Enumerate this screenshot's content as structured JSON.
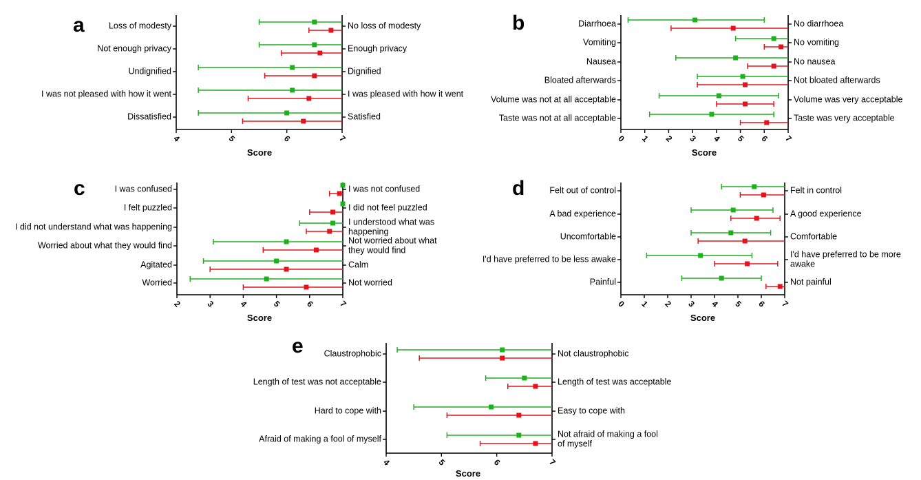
{
  "colors": {
    "green": "#1DB11D",
    "red": "#E5141C"
  },
  "chart_data": [
    {
      "type": "scatter",
      "panel": "a",
      "xlabel": "Score",
      "xlim": [
        4,
        7
      ],
      "ticks": [
        4,
        5,
        6,
        7
      ],
      "rows": [
        {
          "left": "Loss of modesty",
          "right": [
            "No loss of modesty"
          ],
          "green": {
            "mean": 6.5,
            "lo": 5.5,
            "hi": 7
          },
          "red": {
            "mean": 6.8,
            "lo": 6.4,
            "hi": 7
          }
        },
        {
          "left": "Not enough privacy",
          "right": [
            "Enough privacy"
          ],
          "green": {
            "mean": 6.5,
            "lo": 5.5,
            "hi": 7
          },
          "red": {
            "mean": 6.6,
            "lo": 5.9,
            "hi": 7
          }
        },
        {
          "left": "Undignified",
          "right": [
            "Dignified"
          ],
          "green": {
            "mean": 6.1,
            "lo": 4.4,
            "hi": 7
          },
          "red": {
            "mean": 6.5,
            "lo": 5.6,
            "hi": 7
          }
        },
        {
          "left": "I was not pleased with how it went",
          "right": [
            "I was pleased with how it went"
          ],
          "green": {
            "mean": 6.1,
            "lo": 4.4,
            "hi": 7
          },
          "red": {
            "mean": 6.4,
            "lo": 5.3,
            "hi": 7
          }
        },
        {
          "left": "Dissatisfied",
          "right": [
            "Satisfied"
          ],
          "green": {
            "mean": 6.0,
            "lo": 4.4,
            "hi": 7
          },
          "red": {
            "mean": 6.3,
            "lo": 5.2,
            "hi": 7
          }
        }
      ]
    },
    {
      "type": "scatter",
      "panel": "b",
      "xlabel": "Score",
      "xlim": [
        0,
        7
      ],
      "ticks": [
        0,
        1,
        2,
        3,
        4,
        5,
        6,
        7
      ],
      "rows": [
        {
          "left": "Diarrhoea",
          "right": [
            "No diarrhoea"
          ],
          "green": {
            "mean": 3.1,
            "lo": 0.3,
            "hi": 6.0
          },
          "red": {
            "mean": 4.7,
            "lo": 2.1,
            "hi": 7
          }
        },
        {
          "left": "Vomiting",
          "right": [
            "No vomiting"
          ],
          "green": {
            "mean": 6.4,
            "lo": 4.8,
            "hi": 7
          },
          "red": {
            "mean": 6.7,
            "lo": 6.0,
            "hi": 7
          }
        },
        {
          "left": "Nausea",
          "right": [
            "No nausea"
          ],
          "green": {
            "mean": 4.8,
            "lo": 2.3,
            "hi": 7
          },
          "red": {
            "mean": 6.4,
            "lo": 5.3,
            "hi": 7
          }
        },
        {
          "left": "Bloated afterwards",
          "right": [
            "Not bloated afterwards"
          ],
          "green": {
            "mean": 5.1,
            "lo": 3.2,
            "hi": 7
          },
          "red": {
            "mean": 5.2,
            "lo": 3.2,
            "hi": 7
          }
        },
        {
          "left": "Volume was not at all acceptable",
          "right": [
            "Volume was very acceptable"
          ],
          "green": {
            "mean": 4.1,
            "lo": 1.6,
            "hi": 6.6
          },
          "red": {
            "mean": 5.2,
            "lo": 4.0,
            "hi": 6.4
          }
        },
        {
          "left": "Taste was not at all acceptable",
          "right": [
            "Taste was very acceptable"
          ],
          "green": {
            "mean": 3.8,
            "lo": 1.2,
            "hi": 6.4
          },
          "red": {
            "mean": 6.1,
            "lo": 5.0,
            "hi": 7
          }
        }
      ]
    },
    {
      "type": "scatter",
      "panel": "c",
      "xlabel": "Score",
      "xlim": [
        2,
        7
      ],
      "ticks": [
        2,
        3,
        4,
        5,
        6,
        7
      ],
      "rows": [
        {
          "left": "I was confused",
          "right": [
            "I was not confused"
          ],
          "green": {
            "mean": 7.0,
            "lo": 7.0,
            "hi": 7.0
          },
          "red": {
            "mean": 6.9,
            "lo": 6.6,
            "hi": 7
          }
        },
        {
          "left": "I felt puzzled",
          "right": [
            "I did not feel puzzled"
          ],
          "green": {
            "mean": 7.0,
            "lo": 7.0,
            "hi": 7.0
          },
          "red": {
            "mean": 6.7,
            "lo": 6.0,
            "hi": 7
          }
        },
        {
          "left": "I did not understand what was happening",
          "right": [
            "I understood what was",
            "happening"
          ],
          "green": {
            "mean": 6.7,
            "lo": 5.7,
            "hi": 7
          },
          "red": {
            "mean": 6.6,
            "lo": 5.9,
            "hi": 7
          }
        },
        {
          "left": "Worried about what they would find",
          "right": [
            "Not worried about what",
            "they would find"
          ],
          "green": {
            "mean": 5.3,
            "lo": 3.1,
            "hi": 7
          },
          "red": {
            "mean": 6.2,
            "lo": 4.6,
            "hi": 7
          }
        },
        {
          "left": "Agitated",
          "right": [
            "Calm"
          ],
          "green": {
            "mean": 5.0,
            "lo": 2.8,
            "hi": 7
          },
          "red": {
            "mean": 5.3,
            "lo": 3.0,
            "hi": 7
          }
        },
        {
          "left": "Worried",
          "right": [
            "Not worried"
          ],
          "green": {
            "mean": 4.7,
            "lo": 2.4,
            "hi": 7
          },
          "red": {
            "mean": 5.9,
            "lo": 4.0,
            "hi": 7
          }
        }
      ]
    },
    {
      "type": "scatter",
      "panel": "d",
      "xlabel": "Score",
      "xlim": [
        0,
        7
      ],
      "ticks": [
        0,
        1,
        2,
        3,
        4,
        5,
        6,
        7
      ],
      "rows": [
        {
          "left": "Felt out of control",
          "right": [
            "Felt in control"
          ],
          "green": {
            "mean": 5.7,
            "lo": 4.3,
            "hi": 7
          },
          "red": {
            "mean": 6.1,
            "lo": 5.1,
            "hi": 7
          }
        },
        {
          "left": "A bad experience",
          "right": [
            "A good experience"
          ],
          "green": {
            "mean": 4.8,
            "lo": 3.0,
            "hi": 6.5
          },
          "red": {
            "mean": 5.8,
            "lo": 4.7,
            "hi": 6.8
          }
        },
        {
          "left": "Uncomfortable",
          "right": [
            "Comfortable"
          ],
          "green": {
            "mean": 4.7,
            "lo": 3.0,
            "hi": 6.4
          },
          "red": {
            "mean": 5.3,
            "lo": 3.3,
            "hi": 7
          }
        },
        {
          "left": "I'd have preferred to be less awake",
          "right": [
            "I'd have preferred to be more",
            "awake"
          ],
          "green": {
            "mean": 3.4,
            "lo": 1.1,
            "hi": 5.6
          },
          "red": {
            "mean": 5.4,
            "lo": 4.0,
            "hi": 6.7
          }
        },
        {
          "left": "Painful",
          "right": [
            "Not painful"
          ],
          "green": {
            "mean": 4.3,
            "lo": 2.6,
            "hi": 6.0
          },
          "red": {
            "mean": 6.8,
            "lo": 6.2,
            "hi": 7
          }
        }
      ]
    },
    {
      "type": "scatter",
      "panel": "e",
      "xlabel": "Score",
      "xlim": [
        4,
        7
      ],
      "ticks": [
        4,
        5,
        6,
        7
      ],
      "rows": [
        {
          "left": "Claustrophobic",
          "right": [
            "Not claustrophobic"
          ],
          "green": {
            "mean": 6.1,
            "lo": 4.2,
            "hi": 7
          },
          "red": {
            "mean": 6.1,
            "lo": 4.6,
            "hi": 7
          }
        },
        {
          "left": "Length of test was not acceptable",
          "right": [
            "Length of test was acceptable"
          ],
          "green": {
            "mean": 6.5,
            "lo": 5.8,
            "hi": 7
          },
          "red": {
            "mean": 6.7,
            "lo": 6.2,
            "hi": 7
          }
        },
        {
          "left": "Hard to cope with",
          "right": [
            "Easy to cope with"
          ],
          "green": {
            "mean": 5.9,
            "lo": 4.5,
            "hi": 7
          },
          "red": {
            "mean": 6.4,
            "lo": 5.1,
            "hi": 7
          }
        },
        {
          "left": "Afraid of making a fool of myself",
          "right": [
            "Not afraid of making a fool",
            "of myself"
          ],
          "green": {
            "mean": 6.4,
            "lo": 5.1,
            "hi": 7
          },
          "red": {
            "mean": 6.7,
            "lo": 5.7,
            "hi": 7
          }
        }
      ]
    }
  ]
}
